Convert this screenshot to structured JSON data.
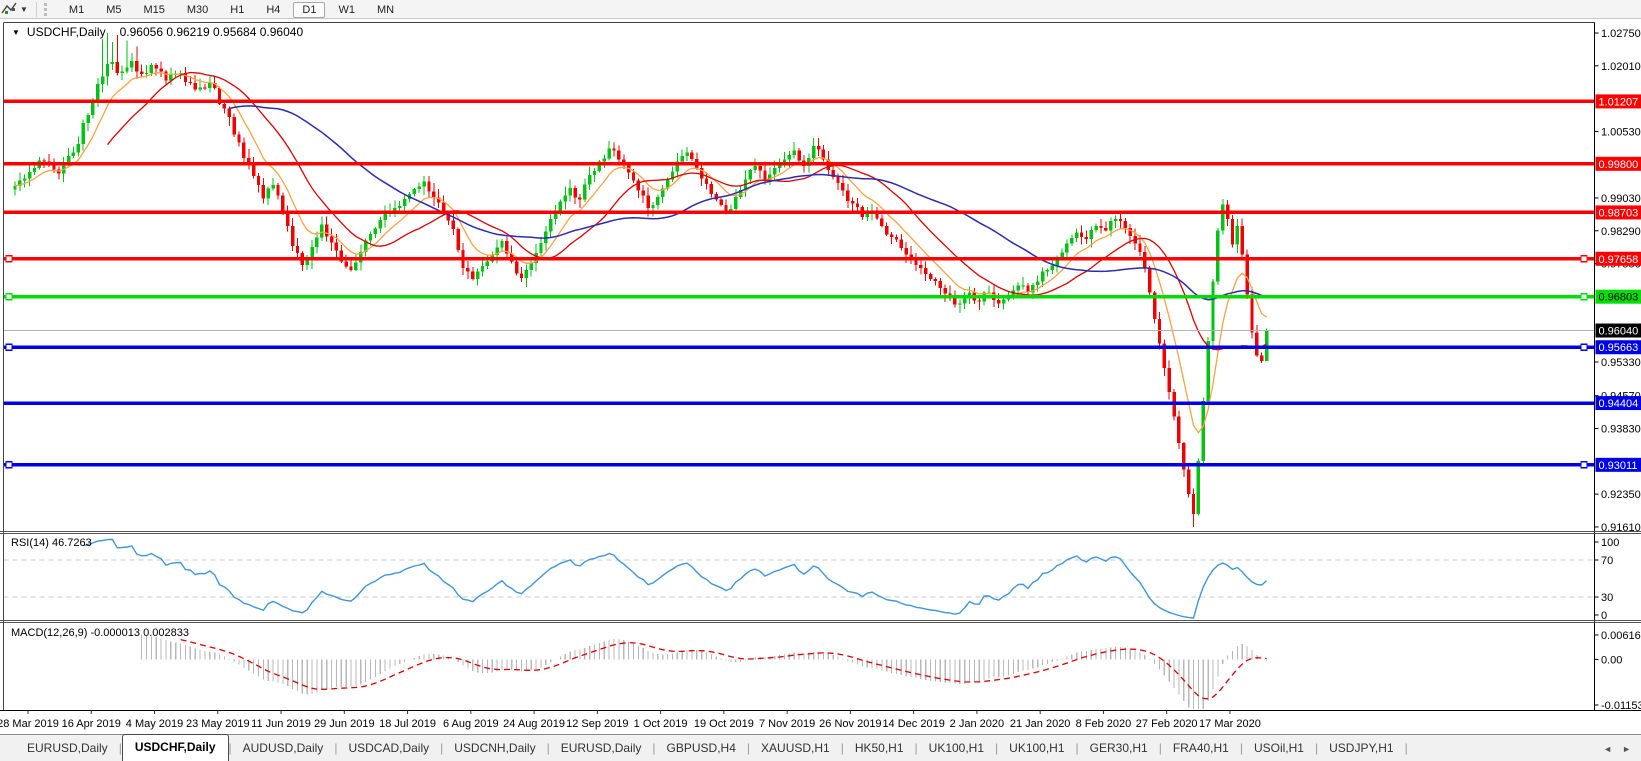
{
  "toolbar": {
    "timeframes": [
      "M1",
      "M5",
      "M15",
      "M30",
      "H1",
      "H4",
      "D1",
      "W1",
      "MN"
    ],
    "active_timeframe": "D1"
  },
  "chart": {
    "title_symbol": "USDCHF,Daily",
    "title_ohlc": "0.96056 0.96219 0.95684 0.96040",
    "up_color": "#00c314",
    "down_color": "#f10000",
    "y_ticks": [
      "1.02750",
      "1.02010",
      "1.00530",
      "0.99030",
      "0.98290",
      "0.97550",
      "0.95330",
      "0.94570",
      "0.93830",
      "0.92350",
      "0.91610"
    ],
    "levels": [
      {
        "price": 1.01207,
        "label": "1.01207",
        "color": "#ff0000",
        "text_color": "#ffffff",
        "selected": false
      },
      {
        "price": 0.998,
        "label": "0.99800",
        "color": "#ff0000",
        "text_color": "#ffffff",
        "selected": false
      },
      {
        "price": 0.98703,
        "label": "0.98703",
        "color": "#ff0000",
        "text_color": "#ffffff",
        "selected": false
      },
      {
        "price": 0.97658,
        "label": "0.97658",
        "color": "#ff0000",
        "text_color": "#ffffff",
        "selected": true
      },
      {
        "price": 0.96803,
        "label": "0.96803",
        "color": "#00dd00",
        "text_color": "#000000",
        "selected": true
      },
      {
        "price": 0.95663,
        "label": "0.95663",
        "color": "#0000e8",
        "text_color": "#ffffff",
        "selected": true
      },
      {
        "price": 0.94404,
        "label": "0.94404",
        "color": "#0000e8",
        "text_color": "#ffffff",
        "selected": false
      },
      {
        "price": 0.93011,
        "label": "0.93011",
        "color": "#0000e8",
        "text_color": "#ffffff",
        "selected": true
      }
    ],
    "current_price": {
      "price": 0.9604,
      "label": "0.96040",
      "line_color": "#b2b2b2",
      "box_color": "#000000",
      "text_color": "#ffffff"
    },
    "x_labels": [
      "28 Mar 2019",
      "16 Apr 2019",
      "4 May 2019",
      "23 May 2019",
      "11 Jun 2019",
      "29 Jun 2019",
      "18 Jul 2019",
      "6 Aug 2019",
      "24 Aug 2019",
      "12 Sep 2019",
      "1 Oct 2019",
      "19 Oct 2019",
      "7 Nov 2019",
      "26 Nov 2019",
      "14 Dec 2019",
      "2 Jan 2020",
      "21 Jan 2020",
      "8 Feb 2020",
      "27 Feb 2020",
      "17 Mar 2020"
    ]
  },
  "rsi": {
    "label": "RSI(14) 46.7263",
    "period": 14,
    "value": 46.7263,
    "ticks": [
      100,
      70,
      30,
      0
    ],
    "dashed_levels": [
      70,
      30
    ],
    "line_color": "#3e96dc"
  },
  "macd": {
    "label": "MACD(12,26,9) -0.000013 0.002833",
    "params": [
      12,
      26,
      9
    ],
    "values": [
      -1.3e-05,
      0.002833
    ],
    "ticks": [
      0.006167,
      0,
      -0.011531
    ],
    "tick_labels": [
      "0.006167",
      "0.00",
      "-0.011531"
    ],
    "bar_color": "#b8b8b8",
    "signal_color": "#e00000"
  },
  "tabs": {
    "items": [
      "EURUSD,Daily",
      "USDCHF,Daily",
      "AUDUSD,Daily",
      "USDCAD,Daily",
      "USDCNH,Daily",
      "EURUSD,Daily",
      "GBPUSD,H4",
      "XAUUSD,H1",
      "HK50,H1",
      "UK100,H1",
      "UK100,H1",
      "GER30,H1",
      "FRA40,H1",
      "USOil,H1",
      "USDJPY,H1"
    ],
    "active_index": 1,
    "scroll_left_icon": "◄",
    "scroll_right_icon": "►"
  },
  "chart_data": {
    "type": "candlestick",
    "symbol": "USDCHF",
    "timeframe": "Daily",
    "ohlc": {
      "open": 0.96056,
      "high": 0.96219,
      "low": 0.95684,
      "close": 0.9604
    },
    "num_candles": 258,
    "price_axis_range": [
      0.9161,
      1.0275
    ],
    "x_axis_dates": [
      "28 Mar 2019",
      "16 Apr 2019",
      "4 May 2019",
      "23 May 2019",
      "11 Jun 2019",
      "29 Jun 2019",
      "18 Jul 2019",
      "6 Aug 2019",
      "24 Aug 2019",
      "12 Sep 2019",
      "1 Oct 2019",
      "19 Oct 2019",
      "7 Nov 2019",
      "26 Nov 2019",
      "14 Dec 2019",
      "2 Jan 2020",
      "21 Jan 2020",
      "8 Feb 2020",
      "27 Feb 2020",
      "17 Mar 2020"
    ],
    "price_keyframes": [
      [
        0,
        0.993
      ],
      [
        3,
        0.9962
      ],
      [
        6,
        0.9985
      ],
      [
        9,
        0.9958
      ],
      [
        12,
        1.0005
      ],
      [
        15,
        1.009
      ],
      [
        17,
        1.016
      ],
      [
        19,
        1.0205
      ],
      [
        22,
        1.0188
      ],
      [
        24,
        1.0212
      ],
      [
        26,
        1.0183
      ],
      [
        28,
        1.0203
      ],
      [
        31,
        1.0168
      ],
      [
        34,
        1.0185
      ],
      [
        37,
        1.0148
      ],
      [
        40,
        1.0162
      ],
      [
        43,
        1.0105
      ],
      [
        46,
        1.0028
      ],
      [
        49,
        0.9952
      ],
      [
        51,
        0.9902
      ],
      [
        53,
        0.9932
      ],
      [
        55,
        0.9872
      ],
      [
        57,
        0.9795
      ],
      [
        59,
        0.9752
      ],
      [
        61,
        0.9792
      ],
      [
        63,
        0.9843
      ],
      [
        65,
        0.9803
      ],
      [
        67,
        0.976
      ],
      [
        69,
        0.9741
      ],
      [
        71,
        0.9781
      ],
      [
        73,
        0.9822
      ],
      [
        75,
        0.9853
      ],
      [
        78,
        0.988
      ],
      [
        81,
        0.9912
      ],
      [
        84,
        0.994
      ],
      [
        86,
        0.9904
      ],
      [
        88,
        0.9868
      ],
      [
        90,
        0.9833
      ],
      [
        92,
        0.9745
      ],
      [
        94,
        0.972
      ],
      [
        96,
        0.975
      ],
      [
        98,
        0.9774
      ],
      [
        100,
        0.9806
      ],
      [
        102,
        0.976
      ],
      [
        104,
        0.9722
      ],
      [
        106,
        0.9756
      ],
      [
        108,
        0.9801
      ],
      [
        110,
        0.9855
      ],
      [
        112,
        0.9895
      ],
      [
        114,
        0.9925
      ],
      [
        116,
        0.99
      ],
      [
        118,
        0.9955
      ],
      [
        120,
        0.9985
      ],
      [
        122,
        1.0015
      ],
      [
        124,
        0.999
      ],
      [
        126,
        0.996
      ],
      [
        128,
        0.992
      ],
      [
        130,
        0.988
      ],
      [
        132,
        0.9905
      ],
      [
        134,
        0.9945
      ],
      [
        136,
        0.9985
      ],
      [
        138,
        1.0005
      ],
      [
        140,
        0.997
      ],
      [
        142,
        0.9935
      ],
      [
        144,
        0.99
      ],
      [
        146,
        0.987
      ],
      [
        148,
        0.9905
      ],
      [
        150,
        0.9945
      ],
      [
        152,
        0.9975
      ],
      [
        154,
        0.9945
      ],
      [
        156,
        0.997
      ],
      [
        158,
        0.999
      ],
      [
        160,
        1.001
      ],
      [
        162,
        0.9975
      ],
      [
        164,
        1.002
      ],
      [
        166,
        0.999
      ],
      [
        168,
        0.995
      ],
      [
        170,
        0.992
      ],
      [
        172,
        0.989
      ],
      [
        174,
        0.986
      ],
      [
        176,
        0.9875
      ],
      [
        178,
        0.984
      ],
      [
        180,
        0.9815
      ],
      [
        182,
        0.979
      ],
      [
        184,
        0.977
      ],
      [
        186,
        0.9745
      ],
      [
        188,
        0.972
      ],
      [
        190,
        0.97
      ],
      [
        192,
        0.968
      ],
      [
        194,
        0.9665
      ],
      [
        196,
        0.969
      ],
      [
        198,
        0.967
      ],
      [
        200,
        0.969
      ],
      [
        202,
        0.9665
      ],
      [
        204,
        0.968
      ],
      [
        206,
        0.9705
      ],
      [
        208,
        0.969
      ],
      [
        210,
        0.9715
      ],
      [
        212,
        0.974
      ],
      [
        214,
        0.977
      ],
      [
        216,
        0.98
      ],
      [
        218,
        0.9825
      ],
      [
        220,
        0.981
      ],
      [
        222,
        0.984
      ],
      [
        224,
        0.983
      ],
      [
        226,
        0.9855
      ],
      [
        228,
        0.9835
      ],
      [
        230,
        0.98
      ],
      [
        232,
        0.9745
      ],
      [
        233,
        0.969
      ],
      [
        234,
        0.963
      ],
      [
        235,
        0.9575
      ],
      [
        236,
        0.952
      ],
      [
        237,
        0.9465
      ],
      [
        238,
        0.941
      ],
      [
        239,
        0.935
      ],
      [
        240,
        0.929
      ],
      [
        241,
        0.9235
      ],
      [
        242,
        0.919
      ],
      [
        243,
        0.931
      ],
      [
        244,
        0.9445
      ],
      [
        245,
        0.958
      ],
      [
        246,
        0.9715
      ],
      [
        247,
        0.983
      ],
      [
        248,
        0.9888
      ],
      [
        249,
        0.9855
      ],
      [
        250,
        0.9798
      ],
      [
        251,
        0.984
      ],
      [
        252,
        0.9775
      ],
      [
        253,
        0.9685
      ],
      [
        254,
        0.96
      ],
      [
        255,
        0.9548
      ],
      [
        256,
        0.9535
      ],
      [
        257,
        0.9604
      ]
    ],
    "wick_overrides": [
      [
        18,
        "high",
        1.0262
      ],
      [
        19,
        "high",
        1.0275
      ],
      [
        20,
        "high",
        1.0255
      ],
      [
        21,
        "high",
        1.027
      ],
      [
        23,
        "high",
        1.0258
      ],
      [
        25,
        "high",
        1.0245
      ],
      [
        242,
        "low",
        0.9161
      ],
      [
        248,
        "high",
        0.9901
      ],
      [
        257,
        "low",
        0.95684
      ]
    ],
    "moving_averages": [
      {
        "type": "ema",
        "period": 9,
        "color": "#ffa143"
      },
      {
        "type": "sma",
        "period": 20,
        "color": "#e00000"
      },
      {
        "type": "sma",
        "period": 45,
        "color": "#2b2bb4"
      }
    ],
    "horizontal_levels": [
      1.01207,
      0.998,
      0.98703,
      0.97658,
      0.96803,
      0.95663,
      0.94404,
      0.93011
    ],
    "indicators": [
      {
        "name": "RSI",
        "period": 14,
        "last": 46.7263,
        "range": [
          0,
          100
        ]
      },
      {
        "name": "MACD",
        "fast": 12,
        "slow": 26,
        "signal": 9,
        "last": [
          -1.3e-05,
          0.002833
        ],
        "range": [
          -0.011531,
          0.006167
        ]
      }
    ]
  }
}
